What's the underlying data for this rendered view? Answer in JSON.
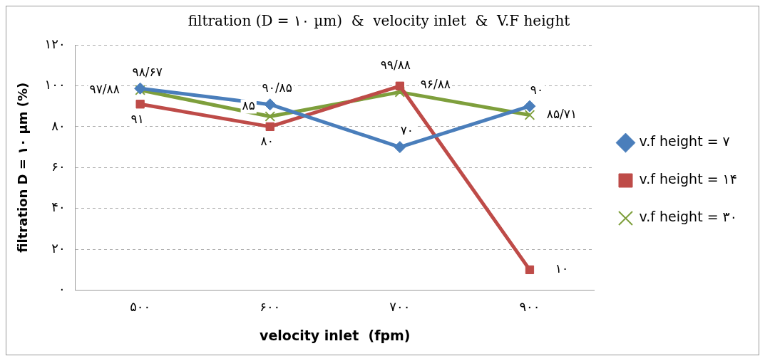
{
  "chart_data": {
    "type": "line",
    "title": "filtration (D = ۱۰ µm)  &  velocity inlet  &  V.F height",
    "xlabel": "velocity inlet  (fpm)",
    "ylabel": "filtration D = ۱۰ µm (%)",
    "categories": [
      "۵۰۰",
      "۶۰۰",
      "۷۰۰",
      "۹۰۰"
    ],
    "series": [
      {
        "name": "v.f height = ۷",
        "color": "#4a7ebb",
        "marker": "diamond",
        "values": [
          98.67,
          90.85,
          70,
          90
        ],
        "value_labels": [
          "۹۸/۶۷",
          "۹۰/۸۵",
          "۷۰",
          "۹۰"
        ]
      },
      {
        "name": "v.f height = ۱۴",
        "color": "#be4b48",
        "marker": "square",
        "values": [
          91,
          80,
          99.88,
          10
        ],
        "value_labels": [
          "۹۱",
          "۸۰",
          "۹۹/۸۸",
          "۱۰"
        ]
      },
      {
        "name": "v.f height = ۳۰",
        "color": "#7e9f3c",
        "marker": "cross",
        "values": [
          97.88,
          85,
          96.88,
          85.71
        ],
        "value_labels": [
          "۹۷/۸۸",
          "۸۵",
          "۹۶/۸۸",
          "۸۵/۷۱"
        ]
      }
    ],
    "ylim": [
      0,
      120
    ],
    "yticks": [
      {
        "value": 0,
        "label": "۰"
      },
      {
        "value": 20,
        "label": "۲۰"
      },
      {
        "value": 40,
        "label": "۴۰"
      },
      {
        "value": 60,
        "label": "۶۰"
      },
      {
        "value": 80,
        "label": "۸۰"
      },
      {
        "value": 100,
        "label": "۱۰۰"
      },
      {
        "value": 120,
        "label": "۱۲۰"
      }
    ],
    "grid": "y",
    "legend": "right",
    "line_style": "solid"
  }
}
